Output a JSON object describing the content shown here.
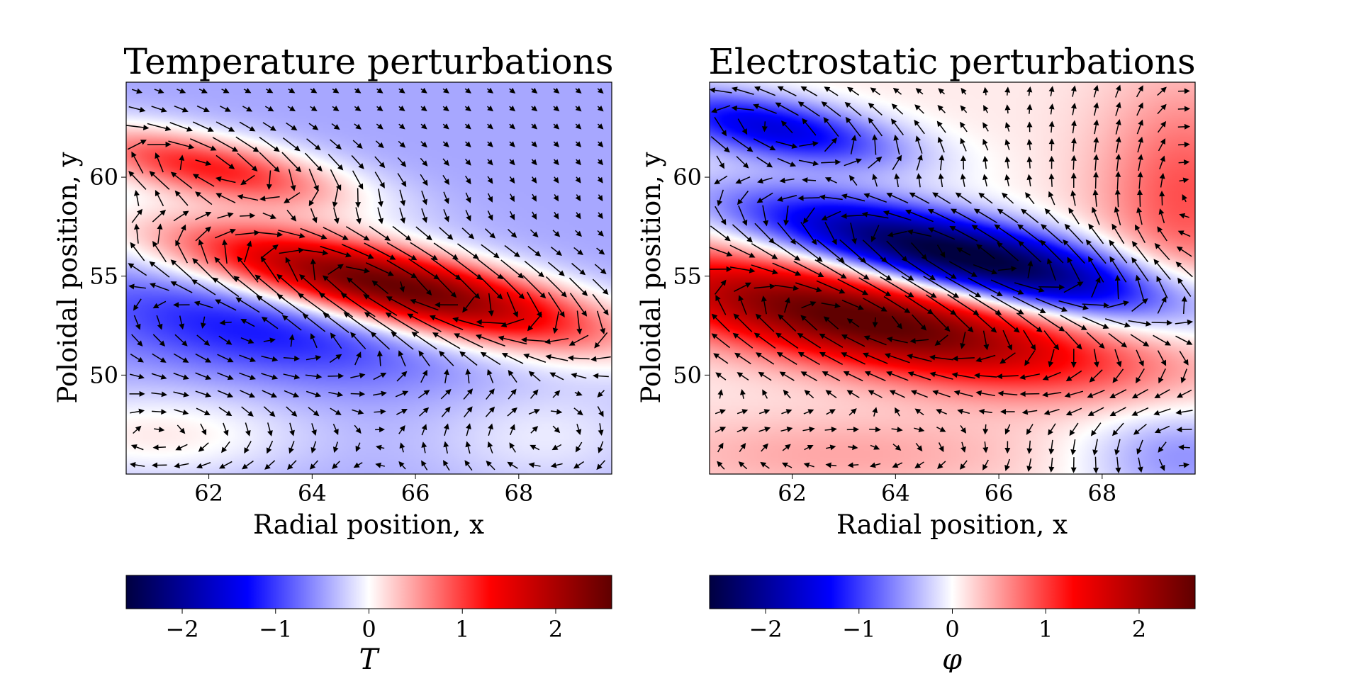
{
  "chart_data": [
    {
      "type": "heatmap",
      "title": "Temperature perturbations",
      "xlabel": "Radial position, x",
      "ylabel": "Poloidal position, y",
      "xlim": [
        60.4,
        69.8
      ],
      "ylim": [
        45.0,
        64.8
      ],
      "xticks": [
        "62",
        "64",
        "66",
        "68"
      ],
      "xtick_values": [
        62,
        64,
        66,
        68
      ],
      "yticks": [
        "50",
        "55",
        "60"
      ],
      "ytick_values": [
        50,
        55,
        60
      ],
      "colorbar": {
        "label": "T",
        "range": [
          -2.6,
          2.6
        ],
        "ticks": [
          "−2",
          "−1",
          "0",
          "1",
          "2"
        ],
        "tick_values": [
          -2,
          -1,
          0,
          1,
          2
        ],
        "colors": [
          "#000040",
          "#0000ff",
          "#ffffff",
          "#ff0000",
          "#600000"
        ]
      },
      "field": {
        "background": -0.45,
        "blobs": [
          {
            "x": 65.5,
            "y": 54.5,
            "amp": 3.1,
            "along": 3.3,
            "across": 1.2,
            "angle": -33
          },
          {
            "x": 62.0,
            "y": 60.5,
            "amp": 1.6,
            "along": 2.2,
            "across": 1.0,
            "angle": -33
          },
          {
            "x": 63.0,
            "y": 52.5,
            "amp": -0.8,
            "along": 2.6,
            "across": 1.6,
            "angle": -30
          },
          {
            "x": 61.0,
            "y": 47.0,
            "amp": 0.55,
            "along": 2.0,
            "across": 1.6,
            "angle": 0
          },
          {
            "x": 68.5,
            "y": 47.0,
            "amp": 0.35,
            "along": 1.6,
            "across": 2.0,
            "angle": 0
          }
        ]
      },
      "vectors": {
        "nx": 22,
        "ny": 22,
        "flow_sign": 1
      }
    },
    {
      "type": "heatmap",
      "title": "Electrostatic perturbations",
      "xlabel": "Radial position, x",
      "ylabel": "Poloidal position, y",
      "xlim": [
        60.4,
        69.8
      ],
      "ylim": [
        45.0,
        64.8
      ],
      "xticks": [
        "62",
        "64",
        "66",
        "68"
      ],
      "xtick_values": [
        62,
        64,
        66,
        68
      ],
      "yticks": [
        "50",
        "55",
        "60"
      ],
      "ytick_values": [
        50,
        55,
        60
      ],
      "colorbar": {
        "label": "φ",
        "range": [
          -2.6,
          2.6
        ],
        "ticks": [
          "−2",
          "−1",
          "0",
          "1",
          "2"
        ],
        "tick_values": [
          -2,
          -1,
          0,
          1,
          2
        ],
        "colors": [
          "#000040",
          "#0000ff",
          "#ffffff",
          "#ff0000",
          "#600000"
        ]
      },
      "field": {
        "background": 0.1,
        "blobs": [
          {
            "x": 65.3,
            "y": 56.0,
            "amp": -2.9,
            "along": 3.3,
            "across": 1.2,
            "angle": -33
          },
          {
            "x": 61.6,
            "y": 62.5,
            "amp": -1.6,
            "along": 2.0,
            "across": 1.0,
            "angle": -33
          },
          {
            "x": 63.4,
            "y": 52.8,
            "amp": 2.6,
            "along": 3.6,
            "across": 1.5,
            "angle": -30
          },
          {
            "x": 69.6,
            "y": 59.0,
            "amp": 0.8,
            "along": 1.2,
            "across": 4.0,
            "angle": 0
          },
          {
            "x": 69.5,
            "y": 46.0,
            "amp": -0.7,
            "along": 1.4,
            "across": 2.0,
            "angle": 0
          },
          {
            "x": 63.0,
            "y": 46.0,
            "amp": 0.35,
            "along": 3.0,
            "across": 1.5,
            "angle": 0
          }
        ]
      },
      "vectors": {
        "nx": 22,
        "ny": 22,
        "flow_sign": 1
      }
    }
  ]
}
